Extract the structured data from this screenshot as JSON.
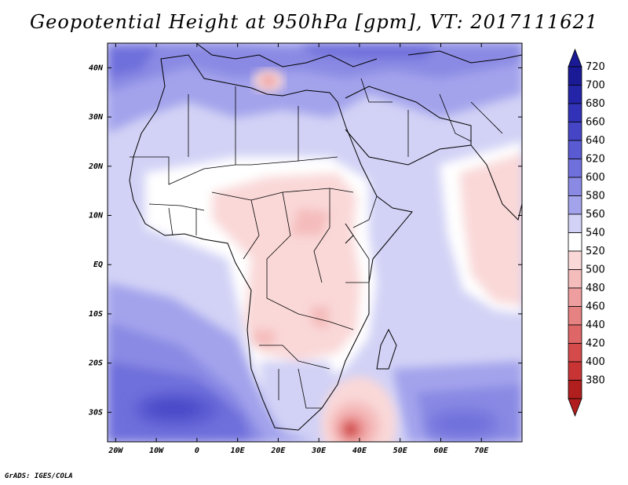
{
  "title": "Geopotential Height at 950hPa [gpm], VT: 2017111621",
  "credit": "GrADS: IGES/COLA",
  "map": {
    "variable": "Geopotential Height",
    "level": "950hPa",
    "units": "gpm",
    "valid_time": "2017111621",
    "lon_range": [
      -22,
      80
    ],
    "lat_range": [
      -36,
      45
    ],
    "lat_ticks": [
      {
        "value": 40,
        "label": "40N"
      },
      {
        "value": 30,
        "label": "30N"
      },
      {
        "value": 20,
        "label": "20N"
      },
      {
        "value": 10,
        "label": "10N"
      },
      {
        "value": 0,
        "label": "EQ"
      },
      {
        "value": -10,
        "label": "10S"
      },
      {
        "value": -20,
        "label": "20S"
      },
      {
        "value": -30,
        "label": "30S"
      }
    ],
    "lon_ticks": [
      {
        "value": -20,
        "label": "20W"
      },
      {
        "value": -10,
        "label": "10W"
      },
      {
        "value": 0,
        "label": "0"
      },
      {
        "value": 10,
        "label": "10E"
      },
      {
        "value": 20,
        "label": "20E"
      },
      {
        "value": 30,
        "label": "30E"
      },
      {
        "value": 40,
        "label": "40E"
      },
      {
        "value": 50,
        "label": "50E"
      },
      {
        "value": 60,
        "label": "60E"
      },
      {
        "value": 70,
        "label": "70E"
      }
    ]
  },
  "colorbar": {
    "levels": [
      {
        "value": 720,
        "color": "#1a1a96"
      },
      {
        "value": 700,
        "color": "#2424a8"
      },
      {
        "value": 680,
        "color": "#3232b8"
      },
      {
        "value": 660,
        "color": "#4545c6"
      },
      {
        "value": 640,
        "color": "#5a5ad2"
      },
      {
        "value": 620,
        "color": "#7070dc"
      },
      {
        "value": 600,
        "color": "#8a8ae4"
      },
      {
        "value": 580,
        "color": "#a3a3ec"
      },
      {
        "value": 560,
        "color": "#d2d2f6"
      },
      {
        "value": 540,
        "color": "#ffffff"
      },
      {
        "value": 520,
        "color": "#fad8d8"
      },
      {
        "value": 500,
        "color": "#f5bcbc"
      },
      {
        "value": 480,
        "color": "#ee9e9e"
      },
      {
        "value": 460,
        "color": "#e68282"
      },
      {
        "value": 440,
        "color": "#de6666"
      },
      {
        "value": 420,
        "color": "#d54b4b"
      },
      {
        "value": 400,
        "color": "#c83434"
      },
      {
        "value": 380,
        "color": "#b01e1e"
      }
    ]
  }
}
